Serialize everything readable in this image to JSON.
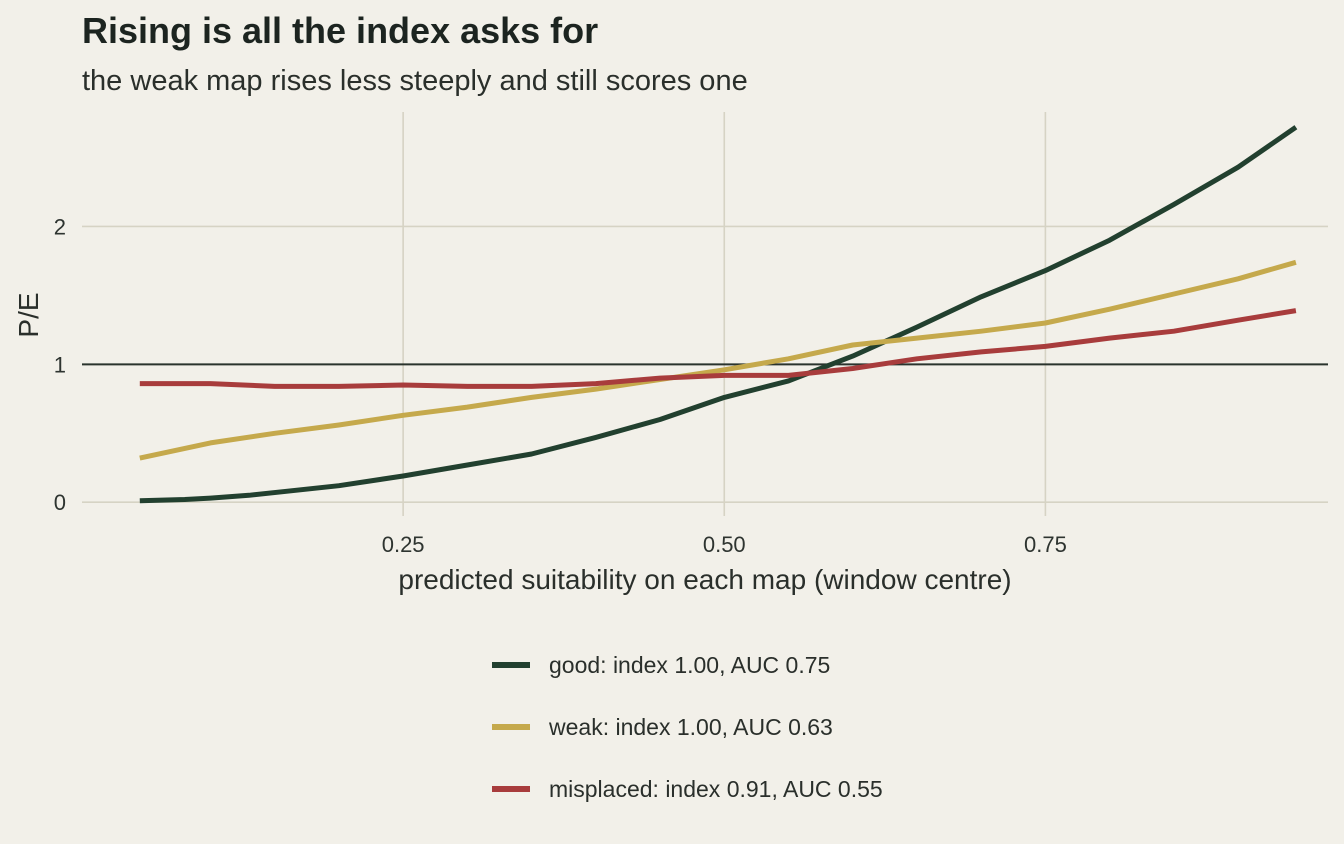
{
  "chart_data": {
    "type": "line",
    "title": "Rising is all the index asks for",
    "subtitle": "the weak map rises less steeply and still scores one",
    "xlabel": "predicted suitability on each map (window centre)",
    "ylabel": "P/E",
    "xlim": [
      0.0,
      0.97
    ],
    "ylim": [
      -0.1,
      2.83
    ],
    "x_ticks": [
      {
        "value": 0.25,
        "label": "0.25"
      },
      {
        "value": 0.5,
        "label": "0.50"
      },
      {
        "value": 0.75,
        "label": "0.75"
      }
    ],
    "y_ticks": [
      {
        "value": 0,
        "label": "0"
      },
      {
        "value": 1,
        "label": "1"
      },
      {
        "value": 2,
        "label": "2"
      }
    ],
    "reference_line": {
      "y": 1,
      "color": "#2a332d"
    },
    "grid": true,
    "legend_position": "bottom",
    "series": [
      {
        "name": "good: index 1.00, AUC 0.75",
        "color": "#22402f",
        "points": [
          [
            0.045,
            0.01
          ],
          [
            0.08,
            0.02
          ],
          [
            0.1,
            0.03
          ],
          [
            0.13,
            0.05
          ],
          [
            0.16,
            0.08
          ],
          [
            0.2,
            0.12
          ],
          [
            0.25,
            0.19
          ],
          [
            0.3,
            0.27
          ],
          [
            0.35,
            0.35
          ],
          [
            0.4,
            0.47
          ],
          [
            0.45,
            0.6
          ],
          [
            0.5,
            0.76
          ],
          [
            0.55,
            0.88
          ],
          [
            0.6,
            1.06
          ],
          [
            0.65,
            1.27
          ],
          [
            0.7,
            1.49
          ],
          [
            0.75,
            1.68
          ],
          [
            0.8,
            1.9
          ],
          [
            0.85,
            2.16
          ],
          [
            0.9,
            2.43
          ],
          [
            0.945,
            2.72
          ]
        ]
      },
      {
        "name": "weak: index 1.00, AUC 0.63",
        "color": "#c5a94c",
        "points": [
          [
            0.045,
            0.32
          ],
          [
            0.1,
            0.43
          ],
          [
            0.15,
            0.5
          ],
          [
            0.2,
            0.56
          ],
          [
            0.25,
            0.63
          ],
          [
            0.3,
            0.69
          ],
          [
            0.35,
            0.76
          ],
          [
            0.4,
            0.82
          ],
          [
            0.45,
            0.89
          ],
          [
            0.5,
            0.96
          ],
          [
            0.55,
            1.04
          ],
          [
            0.6,
            1.14
          ],
          [
            0.65,
            1.19
          ],
          [
            0.7,
            1.24
          ],
          [
            0.75,
            1.3
          ],
          [
            0.8,
            1.4
          ],
          [
            0.85,
            1.51
          ],
          [
            0.9,
            1.62
          ],
          [
            0.945,
            1.74
          ]
        ]
      },
      {
        "name": "misplaced: index 0.91, AUC 0.55",
        "color": "#a83c3c",
        "points": [
          [
            0.045,
            0.86
          ],
          [
            0.1,
            0.86
          ],
          [
            0.15,
            0.84
          ],
          [
            0.2,
            0.84
          ],
          [
            0.25,
            0.85
          ],
          [
            0.3,
            0.84
          ],
          [
            0.35,
            0.84
          ],
          [
            0.4,
            0.86
          ],
          [
            0.45,
            0.9
          ],
          [
            0.5,
            0.92
          ],
          [
            0.55,
            0.92
          ],
          [
            0.6,
            0.97
          ],
          [
            0.65,
            1.04
          ],
          [
            0.7,
            1.09
          ],
          [
            0.75,
            1.13
          ],
          [
            0.8,
            1.19
          ],
          [
            0.85,
            1.24
          ],
          [
            0.9,
            1.32
          ],
          [
            0.945,
            1.39
          ]
        ]
      }
    ]
  }
}
